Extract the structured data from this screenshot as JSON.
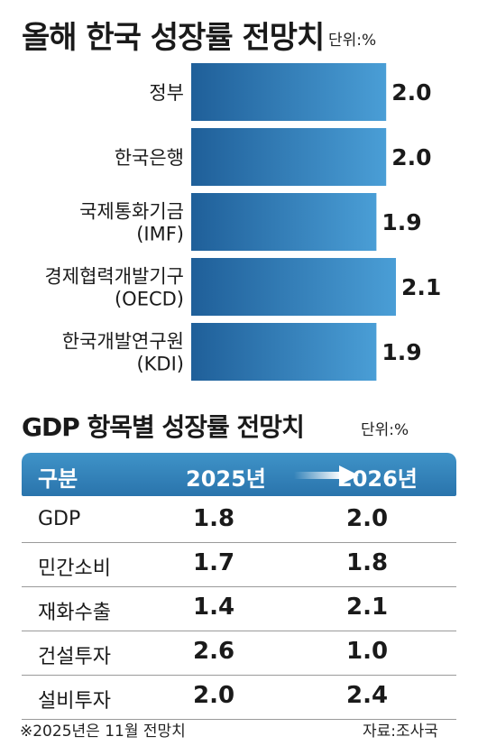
{
  "chart_data": [
    {
      "type": "bar",
      "orientation": "horizontal",
      "title": "올해 한국 성장률 전망치",
      "unit": "단위:%",
      "categories": [
        [
          "정부"
        ],
        [
          "한국은행"
        ],
        [
          "국제통화기금",
          "(IMF)"
        ],
        [
          "경제협력개발기구",
          "(OECD)"
        ],
        [
          "한국개발연구원",
          "(KDI)"
        ]
      ],
      "values": [
        2.0,
        2.0,
        1.9,
        2.1,
        1.9
      ],
      "value_labels": [
        "2.0",
        "2.0",
        "1.9",
        "2.1",
        "1.9"
      ],
      "color": "#2f7fbd",
      "grid": false
    },
    {
      "type": "table",
      "title": "GDP 항목별 성장률 전망치",
      "unit": "단위:%",
      "columns": [
        "구분",
        "2025년",
        "2026년"
      ],
      "rows": [
        [
          "GDP",
          "1.8",
          "2.0"
        ],
        [
          "민간소비",
          "1.7",
          "1.8"
        ],
        [
          "재화수출",
          "1.4",
          "2.1"
        ],
        [
          "건설투자",
          "2.6",
          "1.0"
        ],
        [
          "설비투자",
          "2.0",
          "2.4"
        ]
      ],
      "header_color": "#2f7fbd"
    }
  ],
  "footnote": "※2025년은 11월 전망치",
  "source": "자료:조사국"
}
